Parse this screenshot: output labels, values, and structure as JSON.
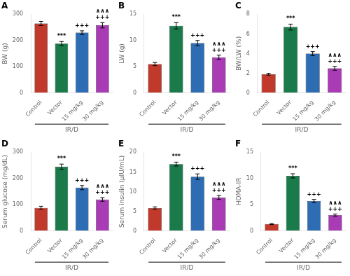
{
  "chart_data": [
    {
      "type": "bar",
      "title": "A",
      "ylabel": "BW (g)",
      "xlabel": "IR/D",
      "categories": [
        "Control",
        "Vector",
        "15 mg/kg",
        "30 mg/kg"
      ],
      "values": [
        265,
        188,
        230,
        258
      ],
      "errors": [
        8,
        8,
        7,
        10
      ],
      "colors": [
        "#c0392b",
        "#1a7a4a",
        "#2e6db4",
        "#a93bb5"
      ],
      "ylim": [
        0,
        300
      ],
      "yticks": [
        0,
        100,
        200,
        300
      ],
      "grid": false,
      "annotations": [
        {
          "category": "Vector",
          "lines": [
            "***"
          ]
        },
        {
          "category": "15 mg/kg",
          "lines": [
            "+++"
          ]
        },
        {
          "category": "30 mg/kg",
          "lines": [
            "∧∧∧",
            "+++"
          ]
        }
      ]
    },
    {
      "type": "bar",
      "title": "B",
      "ylabel": "LW (g)",
      "xlabel": "IR/D",
      "categories": [
        "Control",
        "Vector",
        "15 mg/kg",
        "30 mg/kg"
      ],
      "values": [
        5.5,
        12.8,
        9.5,
        6.8
      ],
      "errors": [
        0.3,
        0.6,
        0.5,
        0.4
      ],
      "colors": [
        "#c0392b",
        "#1a7a4a",
        "#2e6db4",
        "#a93bb5"
      ],
      "ylim": [
        0,
        15
      ],
      "yticks": [
        0,
        5,
        10,
        15
      ],
      "grid": false,
      "annotations": [
        {
          "category": "Vector",
          "lines": [
            "***"
          ]
        },
        {
          "category": "15 mg/kg",
          "lines": [
            "+++"
          ]
        },
        {
          "category": "30 mg/kg",
          "lines": [
            "∧∧∧",
            "+++"
          ]
        }
      ]
    },
    {
      "type": "bar",
      "title": "C",
      "ylabel": "BW/LW (%)",
      "xlabel": "IR/D",
      "categories": [
        "Control",
        "Vector",
        "15 mg/kg",
        "30 mg/kg"
      ],
      "values": [
        1.9,
        6.7,
        4.0,
        2.5
      ],
      "errors": [
        0.1,
        0.3,
        0.2,
        0.2
      ],
      "colors": [
        "#c0392b",
        "#1a7a4a",
        "#2e6db4",
        "#a93bb5"
      ],
      "ylim": [
        0,
        8
      ],
      "yticks": [
        0,
        2,
        4,
        6,
        8
      ],
      "grid": false,
      "annotations": [
        {
          "category": "Vector",
          "lines": [
            "***"
          ]
        },
        {
          "category": "15 mg/kg",
          "lines": [
            "+++"
          ]
        },
        {
          "category": "30 mg/kg",
          "lines": [
            "∧∧∧",
            "+++"
          ]
        }
      ]
    },
    {
      "type": "bar",
      "title": "D",
      "ylabel": "Serum glucose (mg/dL)",
      "xlabel": "IR/D",
      "categories": [
        "Control",
        "Vector",
        "15 mg/kg",
        "30 mg/kg"
      ],
      "values": [
        88,
        245,
        165,
        120
      ],
      "errors": [
        6,
        10,
        8,
        7
      ],
      "colors": [
        "#c0392b",
        "#1a7a4a",
        "#2e6db4",
        "#a93bb5"
      ],
      "ylim": [
        0,
        300
      ],
      "yticks": [
        0,
        100,
        200,
        300
      ],
      "grid": false,
      "annotations": [
        {
          "category": "Vector",
          "lines": [
            "***"
          ]
        },
        {
          "category": "15 mg/kg",
          "lines": [
            "+++"
          ]
        },
        {
          "category": "30 mg/kg",
          "lines": [
            "∧∧∧",
            "+++"
          ]
        }
      ]
    },
    {
      "type": "bar",
      "title": "E",
      "ylabel": "Serum insulin (μIU/mL)",
      "xlabel": "IR/D",
      "categories": [
        "Control",
        "Vector",
        "15 mg/kg",
        "30 mg/kg"
      ],
      "values": [
        5.8,
        17.0,
        13.8,
        8.5
      ],
      "errors": [
        0.3,
        0.5,
        0.7,
        0.5
      ],
      "colors": [
        "#c0392b",
        "#1a7a4a",
        "#2e6db4",
        "#a93bb5"
      ],
      "ylim": [
        0,
        20
      ],
      "yticks": [
        0,
        5,
        10,
        15,
        20
      ],
      "grid": false,
      "annotations": [
        {
          "category": "Vector",
          "lines": [
            "***"
          ]
        },
        {
          "category": "15 mg/kg",
          "lines": [
            "+++"
          ]
        },
        {
          "category": "30 mg/kg",
          "lines": [
            "∧∧∧",
            "+++"
          ]
        }
      ]
    },
    {
      "type": "bar",
      "title": "F",
      "ylabel": "HOMA-IR",
      "xlabel": "IR/D",
      "categories": [
        "Control",
        "Vector",
        "15 mg/kg",
        "30 mg/kg"
      ],
      "values": [
        1.3,
        10.5,
        5.7,
        3.0
      ],
      "errors": [
        0.1,
        0.4,
        0.3,
        0.2
      ],
      "colors": [
        "#c0392b",
        "#1a7a4a",
        "#2e6db4",
        "#a93bb5"
      ],
      "ylim": [
        0,
        15
      ],
      "yticks": [
        0,
        5,
        10,
        15
      ],
      "grid": false,
      "annotations": [
        {
          "category": "Vector",
          "lines": [
            "***"
          ]
        },
        {
          "category": "15 mg/kg",
          "lines": [
            "+++"
          ]
        },
        {
          "category": "30 mg/kg",
          "lines": [
            "∧∧∧",
            "+++"
          ]
        }
      ]
    }
  ]
}
